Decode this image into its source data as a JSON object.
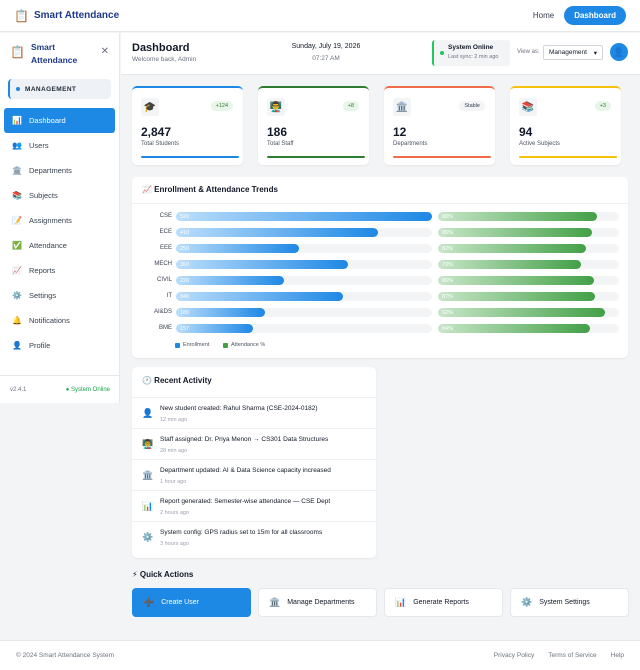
{
  "topnav": {
    "brand": "Smart Attendance",
    "brand_icon": "clipboard-icon",
    "home": "Home",
    "dashboard": "Dashboard"
  },
  "sidebar": {
    "title_line1": "Smart",
    "title_line2": "Attendance",
    "close": "✕",
    "role": "MANAGEMENT",
    "items": [
      {
        "label": "Dashboard",
        "icon": "📊"
      },
      {
        "label": "Users",
        "icon": "👥"
      },
      {
        "label": "Departments",
        "icon": "🏛️"
      },
      {
        "label": "Subjects",
        "icon": "📚"
      },
      {
        "label": "Assignments",
        "icon": "📝"
      },
      {
        "label": "Attendance",
        "icon": "✅"
      },
      {
        "label": "Reports",
        "icon": "📈"
      },
      {
        "label": "Settings",
        "icon": "⚙️"
      },
      {
        "label": "Notifications",
        "icon": "🔔"
      },
      {
        "label": "Profile",
        "icon": "👤"
      }
    ],
    "version": "v2.4.1",
    "system_status": "● System Online"
  },
  "header": {
    "title": "Dashboard",
    "subtitle": "Welcome back, Admin",
    "date": "Sunday, July 19, 2026",
    "time": "07:27 AM",
    "status_title": "System Online",
    "status_sync": "Last sync: 2 min ago",
    "view_as_label": "View as:",
    "view_as_value": "Management",
    "avatar": "👤"
  },
  "stats": [
    {
      "icon": "🎓",
      "badge": "+124",
      "value": "2,847",
      "label": "Total Students",
      "color": "#1e88e5"
    },
    {
      "icon": "👨‍🏫",
      "badge": "+8",
      "value": "186",
      "label": "Total Staff",
      "color": "#2e7d32"
    },
    {
      "icon": "🏛️",
      "badge": "Stable",
      "value": "12",
      "label": "Departments",
      "color": "#ef6c4a"
    },
    {
      "icon": "📚",
      "badge": "+3",
      "value": "94",
      "label": "Active Subjects",
      "color": "#f4c20d"
    }
  ],
  "chart": {
    "title": "📈 Enrollment & Attendance Trends",
    "legend_enrollment": "Enrollment",
    "legend_attendance": "Attendance %",
    "enrollment_color": "#1e88e5",
    "attendance_color": "#43a047"
  },
  "chart_data": {
    "type": "bar",
    "categories": [
      "CSE",
      "ECE",
      "EEE",
      "MECH",
      "CIVIL",
      "IT",
      "AI&DS",
      "BME"
    ],
    "series": [
      {
        "name": "Enrollment",
        "values": [
          520,
          410,
          250,
          350,
          220,
          340,
          180,
          157
        ]
      },
      {
        "name": "Attendance %",
        "values": [
          88,
          85,
          82,
          79,
          86,
          87,
          92,
          84
        ]
      }
    ],
    "enrollment_max": 520,
    "attendance_max": 100
  },
  "activity": {
    "title": "🕐 Recent Activity",
    "items": [
      {
        "icon": "👤",
        "text": "New student created: Rahul Sharma (CSE-2024-0182)",
        "time": "12 min ago"
      },
      {
        "icon": "👨‍🏫",
        "text": "Staff assigned: Dr. Priya Menon → CS301 Data Structures",
        "time": "28 min ago"
      },
      {
        "icon": "🏛️",
        "text": "Department updated: AI & Data Science capacity increased",
        "time": "1 hour ago"
      },
      {
        "icon": "📊",
        "text": "Report generated: Semester-wise attendance — CSE Dept",
        "time": "2 hours ago"
      },
      {
        "icon": "⚙️",
        "text": "System config: GPS radius set to 15m for all classrooms",
        "time": "3 hours ago"
      }
    ]
  },
  "quick_actions": {
    "title": "⚡ Quick Actions",
    "buttons": [
      {
        "icon": "➕",
        "label": "Create User"
      },
      {
        "icon": "🏛️",
        "label": "Manage Departments"
      },
      {
        "icon": "📊",
        "label": "Generate Reports"
      },
      {
        "icon": "⚙️",
        "label": "System Settings"
      }
    ]
  },
  "footer": {
    "copyright": "© 2024 Smart Attendance System",
    "privacy": "Privacy Policy",
    "terms": "Terms of Service",
    "help": "Help"
  }
}
